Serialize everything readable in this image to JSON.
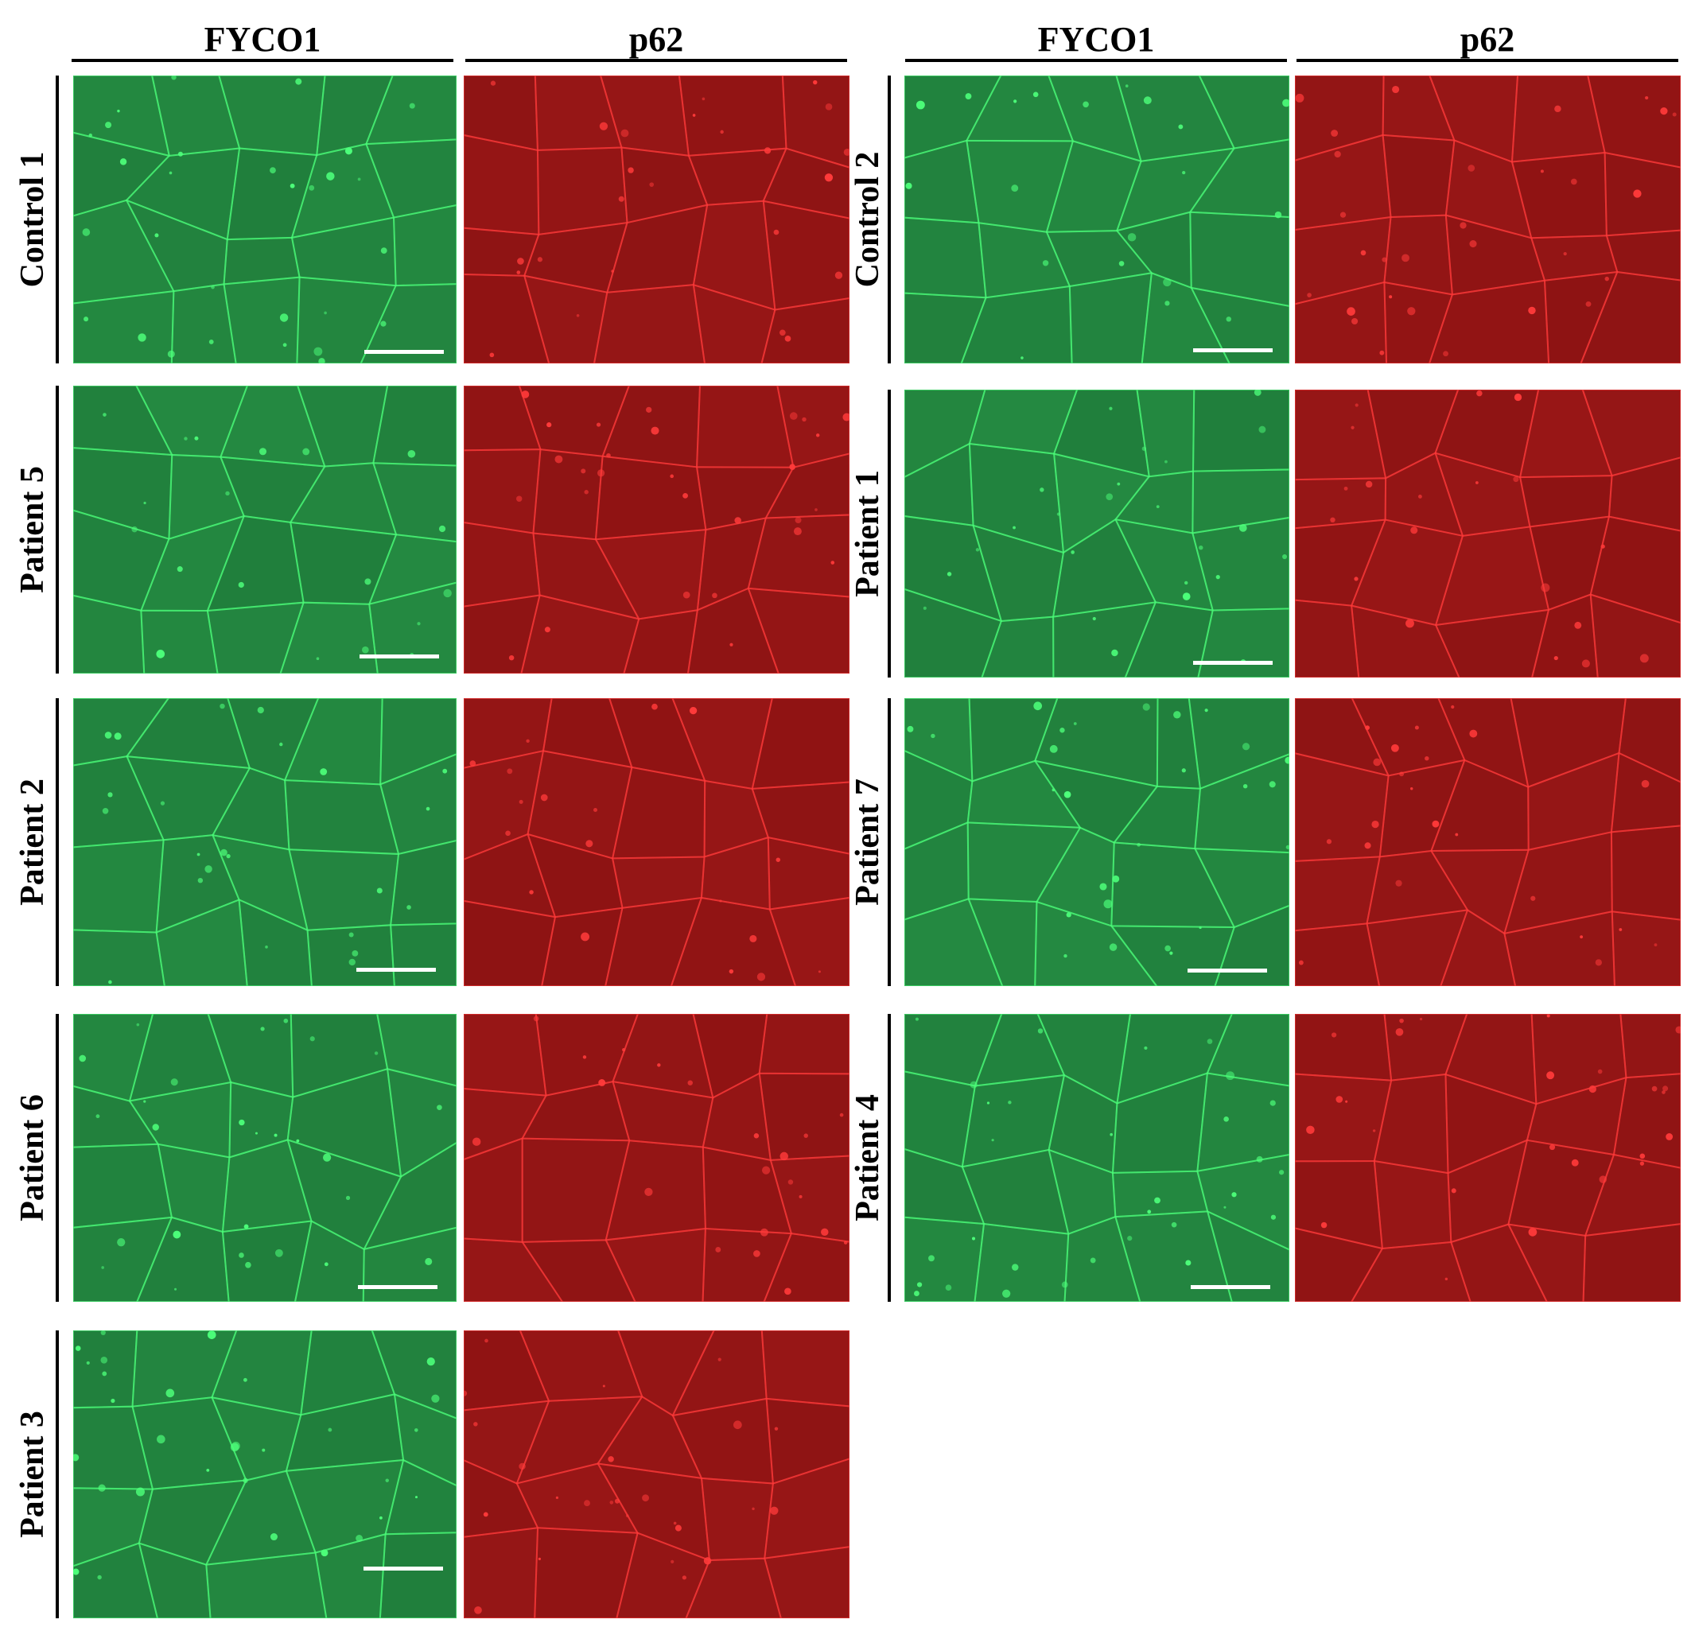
{
  "figure": {
    "channels": [
      "FYCO1",
      "p62"
    ],
    "channel_colors": {
      "FYCO1": "#1f7a3a",
      "p62": "#8a1212"
    },
    "stain_colors": {
      "FYCO1": "#4dff7a",
      "p62": "#ff3a3a"
    },
    "left_group": {
      "headers": [
        "FYCO1",
        "p62"
      ],
      "rows": [
        {
          "label": "Control 1"
        },
        {
          "label": "Patient 5"
        },
        {
          "label": "Patient 2"
        },
        {
          "label": "Patient 6"
        },
        {
          "label": "Patient 3"
        }
      ]
    },
    "right_group": {
      "headers": [
        "FYCO1",
        "p62"
      ],
      "rows": [
        {
          "label": "Control 2"
        },
        {
          "label": "Patient 1"
        },
        {
          "label": "Patient 7"
        },
        {
          "label": "Patient 4"
        }
      ]
    }
  }
}
